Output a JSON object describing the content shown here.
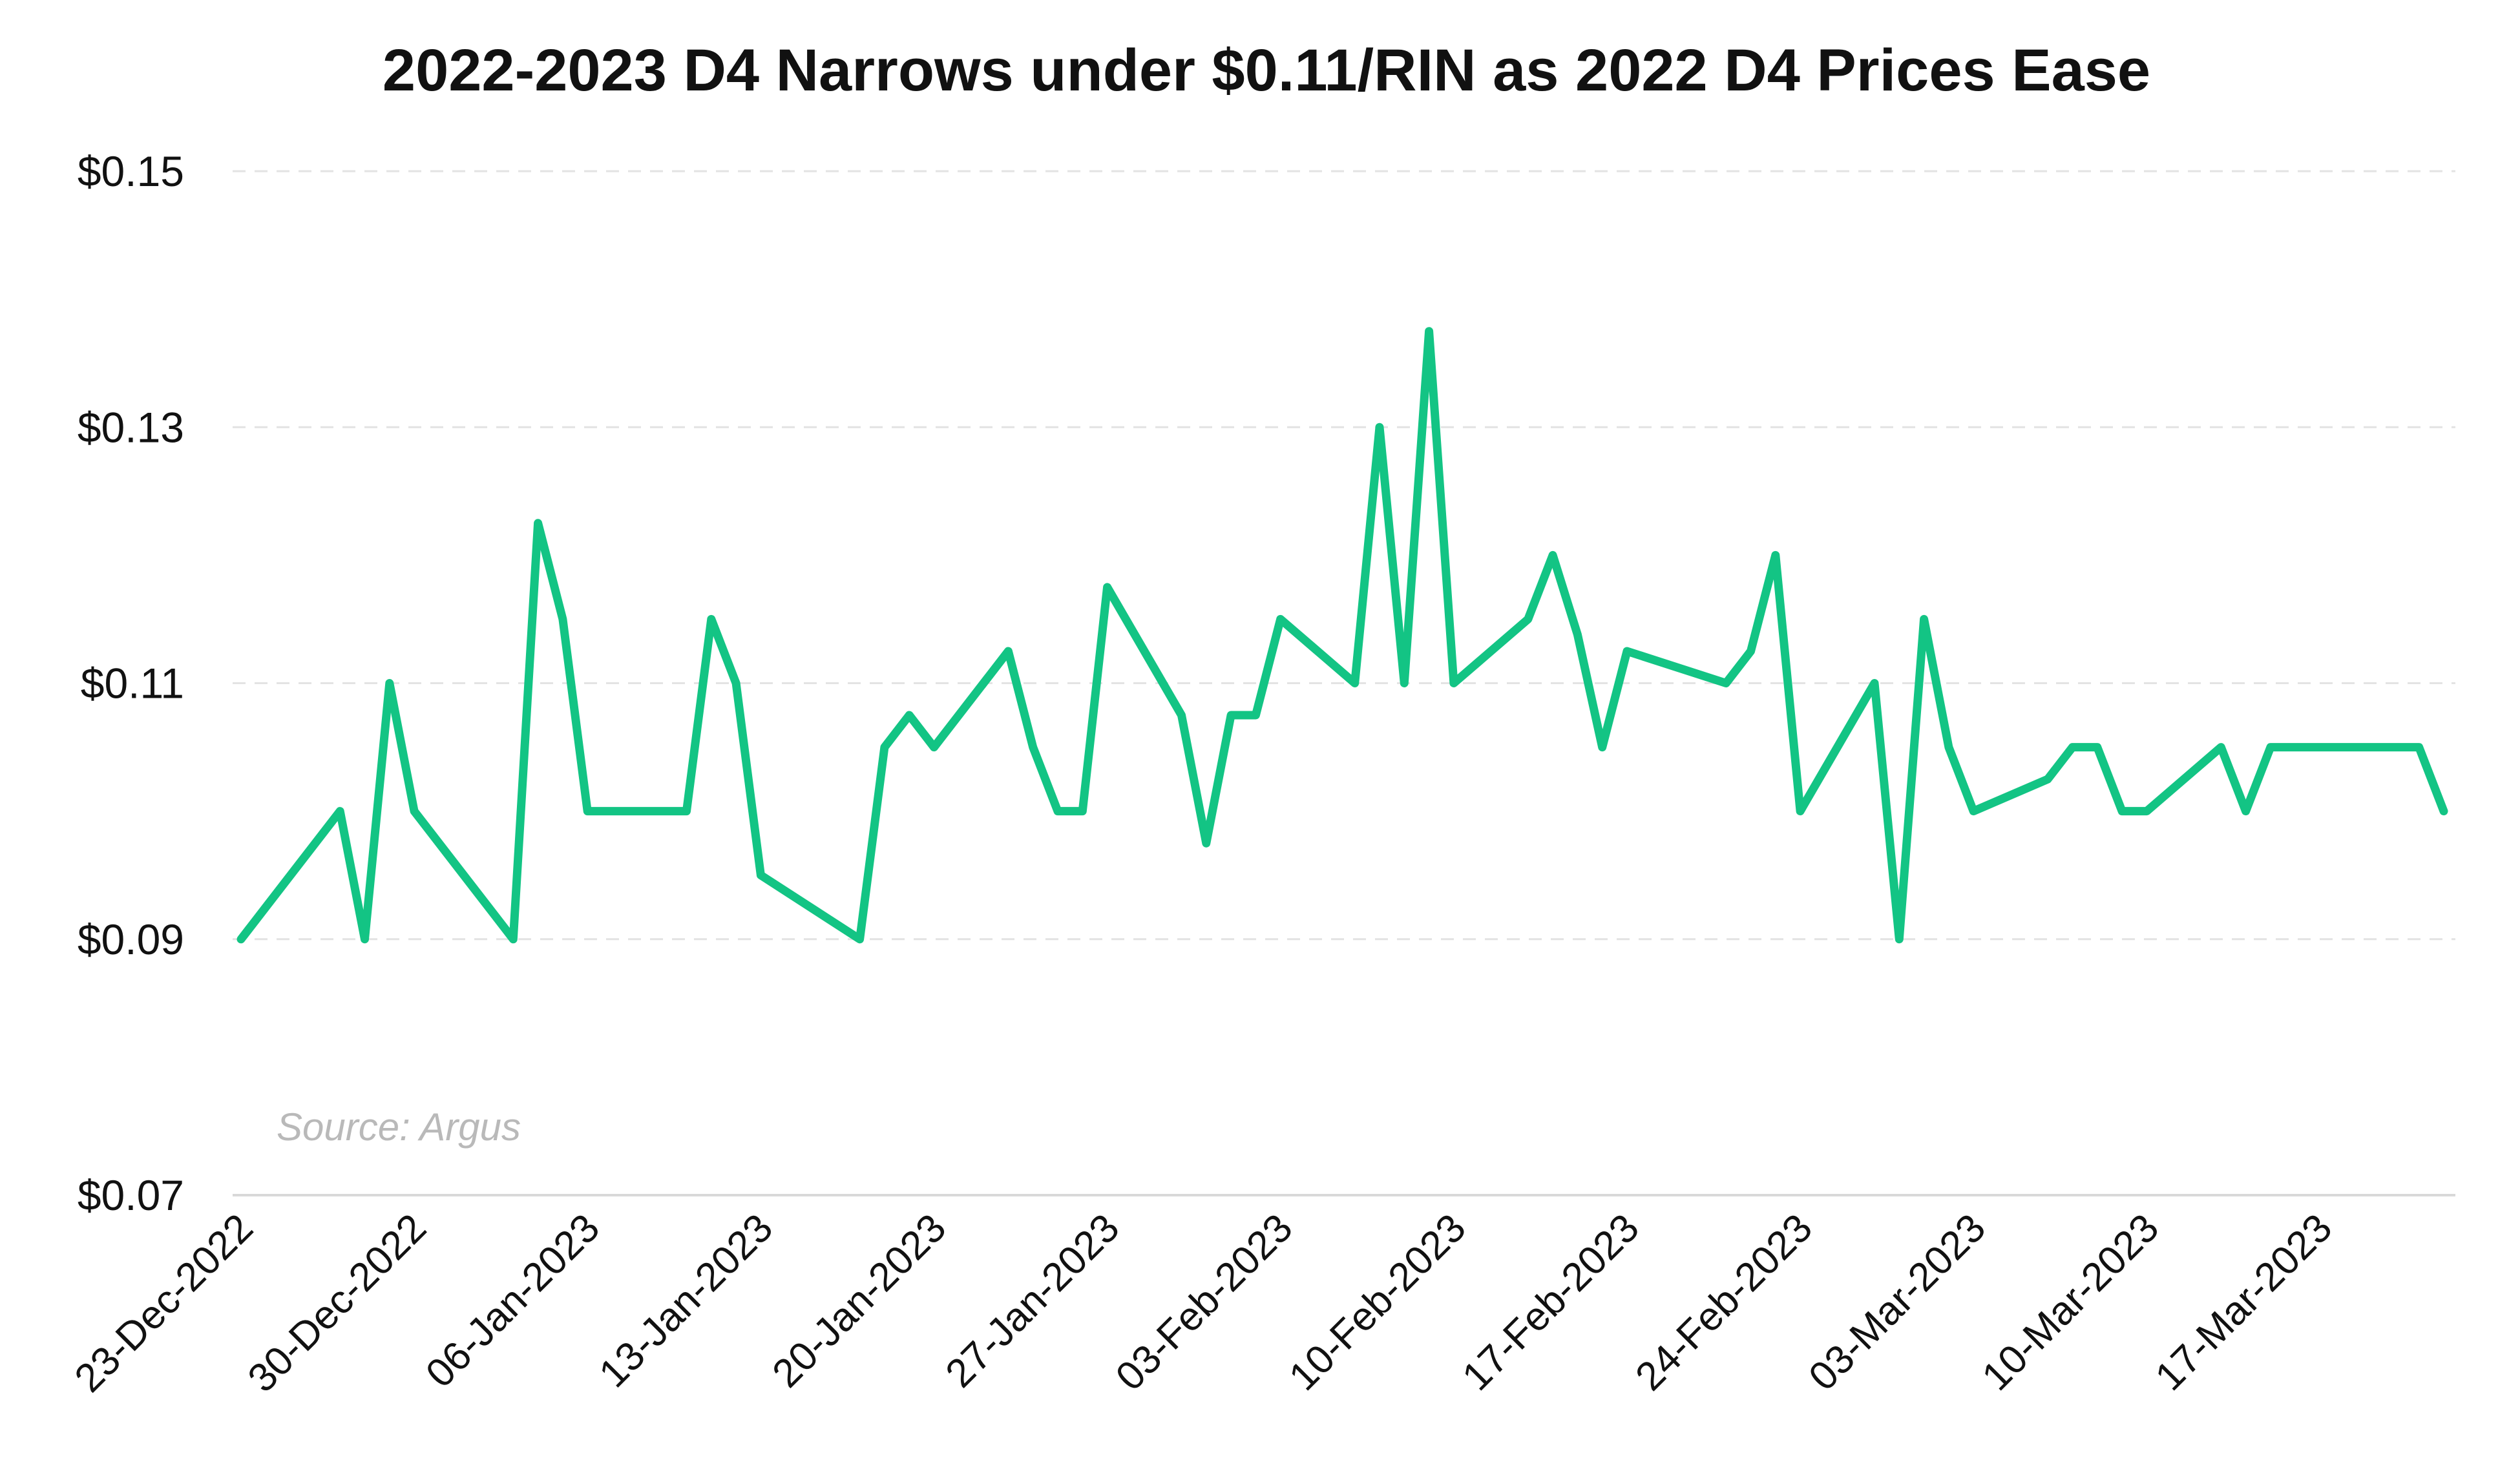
{
  "chart_data": {
    "type": "line",
    "title": "2022-2023 D4 Narrows under $0.11/RIN as 2022 D4 Prices Ease",
    "xlabel": "",
    "ylabel": "",
    "ylim": [
      0.07,
      0.15
    ],
    "y_ticks": [
      "$0.07",
      "$0.09",
      "$0.11",
      "$0.13",
      "$0.15"
    ],
    "y_tick_values": [
      0.07,
      0.09,
      0.11,
      0.13,
      0.15
    ],
    "x_range": [
      "2022-12-23",
      "2023-03-22"
    ],
    "x_ticks": [
      "23-Dec-2022",
      "30-Dec-2022",
      "06-Jan-2023",
      "13-Jan-2023",
      "20-Jan-2023",
      "27-Jan-2023",
      "03-Feb-2023",
      "10-Feb-2023",
      "17-Feb-2023",
      "24-Feb-2023",
      "03-Mar-2023",
      "10-Mar-2023",
      "17-Mar-2023"
    ],
    "x_tick_dates": [
      "2022-12-23",
      "2022-12-30",
      "2023-01-06",
      "2023-01-13",
      "2023-01-20",
      "2023-01-27",
      "2023-02-03",
      "2023-02-10",
      "2023-02-17",
      "2023-02-24",
      "2023-03-03",
      "2023-03-10",
      "2023-03-17"
    ],
    "grid": "horizontal dashed",
    "legend": "none",
    "annotation": "Source: Argus",
    "series": [
      {
        "color": "#13c484",
        "x": [
          "2022-12-23",
          "2022-12-27",
          "2022-12-28",
          "2022-12-29",
          "2022-12-30",
          "2023-01-03",
          "2023-01-04",
          "2023-01-05",
          "2023-01-06",
          "2023-01-10",
          "2023-01-11",
          "2023-01-12",
          "2023-01-13",
          "2023-01-17",
          "2023-01-18",
          "2023-01-19",
          "2023-01-20",
          "2023-01-23",
          "2023-01-24",
          "2023-01-25",
          "2023-01-26",
          "2023-01-27",
          "2023-01-30",
          "2023-01-31",
          "2023-02-01",
          "2023-02-02",
          "2023-02-03",
          "2023-02-06",
          "2023-02-07",
          "2023-02-08",
          "2023-02-09",
          "2023-02-10",
          "2023-02-13",
          "2023-02-14",
          "2023-02-15",
          "2023-02-16",
          "2023-02-17",
          "2023-02-21",
          "2023-02-22",
          "2023-02-23",
          "2023-02-24",
          "2023-02-27",
          "2023-02-28",
          "2023-03-01",
          "2023-03-02",
          "2023-03-03",
          "2023-03-06",
          "2023-03-07",
          "2023-03-08",
          "2023-03-09",
          "2023-03-10",
          "2023-03-13",
          "2023-03-14",
          "2023-03-15",
          "2023-03-16",
          "2023-03-17",
          "2023-03-20",
          "2023-03-21",
          "2023-03-22"
        ],
        "values": [
          0.09,
          0.1,
          0.09,
          0.11,
          0.1,
          0.09,
          0.1225,
          0.115,
          0.1,
          0.1,
          0.115,
          0.11,
          0.095,
          0.09,
          0.105,
          0.1075,
          0.105,
          0.1125,
          0.105,
          0.1,
          0.1,
          0.1175,
          0.1075,
          0.0975,
          0.1075,
          0.1075,
          0.115,
          0.11,
          0.13,
          0.11,
          0.1375,
          0.11,
          0.115,
          0.12,
          0.1138,
          0.105,
          0.1125,
          0.11,
          0.1125,
          0.12,
          0.1,
          0.11,
          0.09,
          0.115,
          0.105,
          0.1,
          0.1025,
          0.105,
          0.105,
          0.1,
          0.1,
          0.105,
          0.1,
          0.105,
          0.105,
          0.105,
          0.105,
          0.105,
          0.1
        ]
      }
    ]
  }
}
